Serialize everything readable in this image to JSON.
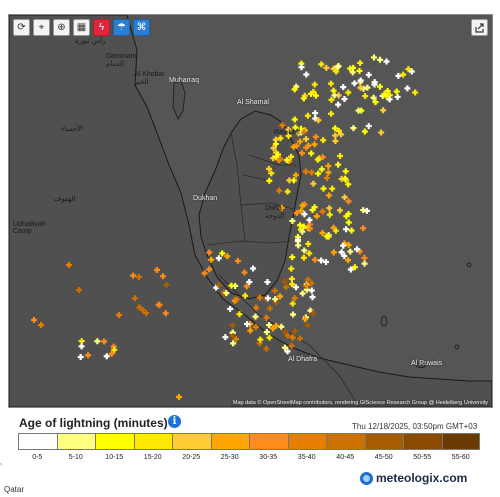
{
  "toolbar": {
    "buttons": [
      {
        "name": "refresh-button",
        "icon": "refresh-icon",
        "glyph": "⟳"
      },
      {
        "name": "location-button",
        "icon": "location-pin-icon",
        "glyph": "⌖"
      },
      {
        "name": "zoom-button",
        "icon": "zoom-icon",
        "glyph": "⊕"
      },
      {
        "name": "map-layers-button",
        "icon": "layers-icon",
        "glyph": "▦"
      },
      {
        "name": "lightning-toggle-button",
        "icon": "lightning-icon",
        "glyph": "ϟ"
      },
      {
        "name": "weather-layer-button",
        "icon": "weather-icon",
        "glyph": "☂"
      },
      {
        "name": "satellite-layer-button",
        "icon": "satellite-icon",
        "glyph": "⌘"
      }
    ],
    "share_icon": "share-icon"
  },
  "map": {
    "places": {
      "dammam": "Dammam\nالدمام",
      "khobar": "Al Khobar\nالخبر",
      "muharraq": "Muharraq",
      "al_shamal": "Al Shamal",
      "ras_laffan": "Ras Laff...",
      "dukhan": "Dukhan",
      "doha": "Doha\nالدوحة",
      "hofuf": "الهفوف",
      "ahsa": "الأحساء",
      "udhailiyah": "Udhailiyah\nCamp",
      "al_ruwais": "Al Ruwais",
      "al_dhafra": "Al Dhafra",
      "ras_tanura": "رأس تنورة"
    },
    "attribution": "Map data © OpenStreetMap contributors, rendering GIScience Research Group @ Heidelberg University"
  },
  "legend": {
    "title": "Age of lightning (minutes)",
    "info_icon": "info-icon",
    "timestamp": "Thu 12/18/2025, 03:50pm GMT+03",
    "bins": [
      "0-5",
      "5-10",
      "10-15",
      "15-20",
      "20-25",
      "25-30",
      "30-35",
      "35-40",
      "40-45",
      "45-50",
      "50-55",
      "55-60"
    ],
    "colors": [
      "#ffffff",
      "#ffff80",
      "#ffff00",
      "#ffe800",
      "#ffcc33",
      "#ffa500",
      "#ff8c1a",
      "#e67e00",
      "#cc7000",
      "#a65c00",
      "#8a4b00",
      "#6a3a00"
    ]
  },
  "brand": {
    "name": "meteologix.com",
    "logo_icon": "meteologix-logo-icon"
  },
  "region": "Qatar"
}
